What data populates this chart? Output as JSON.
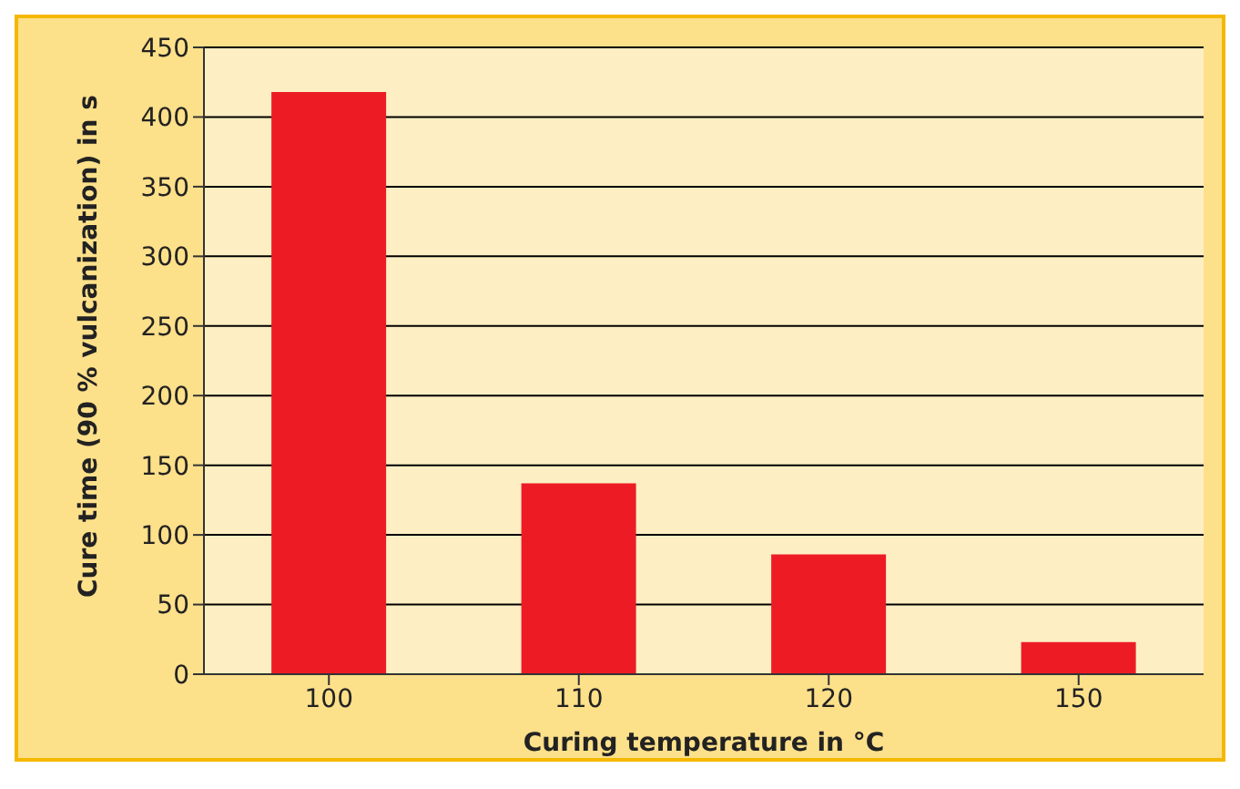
{
  "chart_data": {
    "type": "bar",
    "xlabel": "Curing temperature in °C",
    "ylabel": "Cure time (90 % vulcanization) in s",
    "categories": [
      "100",
      "110",
      "120",
      "150"
    ],
    "series": [
      {
        "color": "#ed1c24",
        "values": [
          418,
          137,
          86,
          23
        ]
      }
    ],
    "ylim": [
      0,
      450
    ],
    "yticks": [
      0,
      50,
      100,
      150,
      200,
      250,
      300,
      350,
      400,
      450
    ],
    "grid": "y"
  }
}
